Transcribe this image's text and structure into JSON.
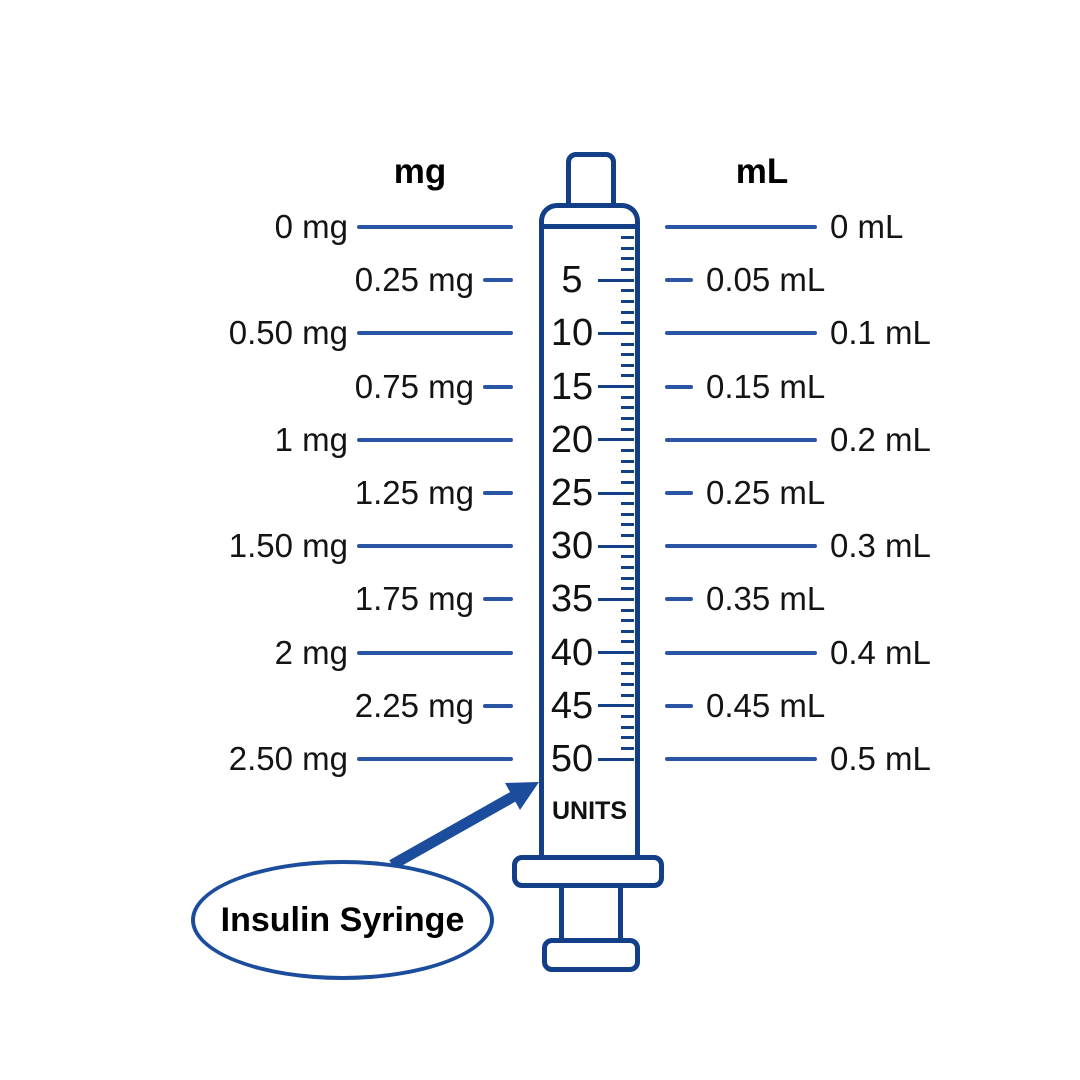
{
  "headers": {
    "mg": "mg",
    "ml": "mL"
  },
  "syringe": {
    "units_label": "UNITS"
  },
  "callout": {
    "label": "Insulin Syringe"
  },
  "colors": {
    "outline": "#123f87",
    "connector_line": "#2a55a3",
    "callout": "#1c4c9c",
    "needle_top": "#8fa9d5",
    "needle_bottom": "#2a55a3"
  },
  "icons": {
    "arrow": "callout-arrow-icon",
    "needle": "needle-icon"
  },
  "scale": {
    "units_min": 0,
    "units_max": 50,
    "minor_step": 1,
    "major_step": 5
  },
  "rows": [
    {
      "mg": "0 mg",
      "units": "",
      "ml": "0 mL",
      "major": true
    },
    {
      "mg": "0.25 mg",
      "units": "5",
      "ml": "0.05 mL",
      "major": false
    },
    {
      "mg": "0.50 mg",
      "units": "10",
      "ml": "0.1 mL",
      "major": true
    },
    {
      "mg": "0.75 mg",
      "units": "15",
      "ml": "0.15 mL",
      "major": false
    },
    {
      "mg": "1 mg",
      "units": "20",
      "ml": "0.2 mL",
      "major": true
    },
    {
      "mg": "1.25 mg",
      "units": "25",
      "ml": "0.25 mL",
      "major": false
    },
    {
      "mg": "1.50 mg",
      "units": "30",
      "ml": "0.3 mL",
      "major": true
    },
    {
      "mg": "1.75 mg",
      "units": "35",
      "ml": "0.35 mL",
      "major": false
    },
    {
      "mg": "2 mg",
      "units": "40",
      "ml": "0.4 mL",
      "major": true
    },
    {
      "mg": "2.25 mg",
      "units": "45",
      "ml": "0.45 mL",
      "major": false
    },
    {
      "mg": "2.50 mg",
      "units": "50",
      "ml": "0.5 mL",
      "major": true
    }
  ]
}
